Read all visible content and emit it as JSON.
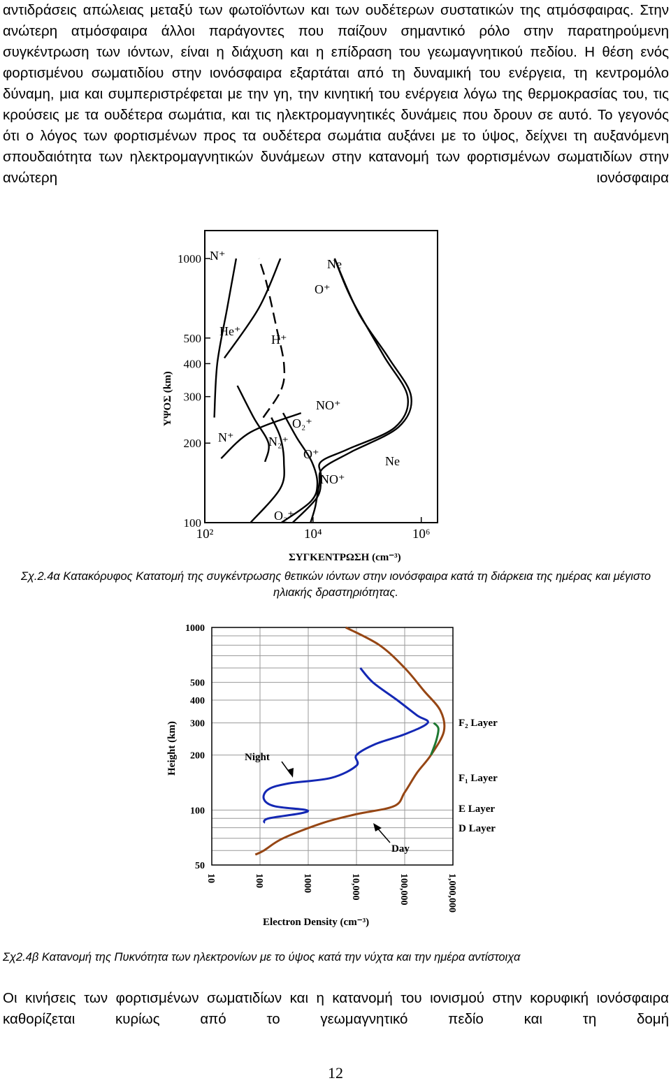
{
  "paragraphs": {
    "intro": "αντιδράσεις απώλειας μεταξύ των φωτοϊόντων και των ουδέτερων συστατικών της ατμόσφαιρας. Στην ανώτερη ατμόσφαιρα άλλοι παράγοντες που παίζουν σημαντικό ρόλο στην παρατηρούμενη συγκέντρωση των ιόντων, είναι η διάχυση και η επίδραση του γεωμαγνητικού πεδίου. Η θέση ενός φορτισμένου σωματιδίου στην ιονόσφαιρα εξαρτάται από τη δυναμική του ενέργεια, τη κεντρομόλο δύναμη, μια και συμπεριστρέφεται με την γη, την κινητική του ενέργεια λόγω της θερμοκρασίας του, τις κρούσεις με τα ουδέτερα σωμάτια, και τις ηλεκτρομαγνητικές δυνάμεις που δρουν σε αυτό. Το γεγονός ότι ο λόγος των φορτισμένων προς τα ουδέτερα σωμάτια αυξάνει με το ύψος, δείχνει τη αυξανόμενη σπουδαιότητα των ηλεκτρομαγνητικών δυνάμεων στην κατανομή των φορτισμένων σωματιδίων στην ανώτερη ιονόσφαιρα",
    "closing": "Οι κινήσεις των φορτισμένων σωματιδίων και η κατανομή του ιονισμού στην κορυφική ιονόσφαιρα καθορίζεται κυρίως από το γεωμαγνητικό πεδίο και τη δομή"
  },
  "captions": {
    "fig_a": "Σχ.2.4α Κατακόρυφος Κατατομή της συγκέντρωσης θετικών ιόντων στην ιονόσφαιρα κατά τη διάρκεια της ημέρας και μέγιστο ηλιακής δραστηριότητας.",
    "fig_b": "Σχ2.4β Κατανομή της Πυκνότητα των ηλεκτρονίων με το ύψος κατά την νύχτα και την ημέρα αντίστοιχα"
  },
  "page_number": "12",
  "chart_data": [
    {
      "type": "line",
      "ylabel": "ΥΨΟΣ (km)",
      "xlabel": "ΣΥΓΚΕΝΤΡΩΣΗ (cm⁻³)",
      "x_scale": "log",
      "y_scale": "log",
      "xlim": [
        100,
        2000000
      ],
      "ylim": [
        100,
        1000
      ],
      "x_tick_labels": [
        {
          "value": 100,
          "label": "10²"
        },
        {
          "value": 10000,
          "label": "10⁴"
        },
        {
          "value": 1000000,
          "label": "10⁶"
        }
      ],
      "y_tick_labels": [
        "100",
        "200",
        "300",
        "400",
        "500",
        "1000"
      ],
      "y_ticks": [
        100,
        200,
        300,
        400,
        500,
        1000
      ],
      "color": "#000000",
      "series": [
        {
          "name": "Ne",
          "dash": false,
          "points": [
            [
              9000,
              100
            ],
            [
              11000,
              115
            ],
            [
              13000,
              140
            ],
            [
              15000,
              160
            ],
            [
              50000,
              185
            ],
            [
              380000,
              230
            ],
            [
              650000,
              300
            ],
            [
              250000,
              420
            ],
            [
              70000,
              620
            ],
            [
              25000,
              1000
            ]
          ]
        },
        {
          "name": "O⁺",
          "dash": false,
          "points": [
            [
              4200,
              100
            ],
            [
              12000,
              125
            ],
            [
              14000,
              150
            ],
            [
              14000,
              170
            ],
            [
              45000,
              190
            ],
            [
              330000,
              230
            ],
            [
              560000,
              300
            ],
            [
              200000,
              430
            ],
            [
              52000,
              700
            ],
            [
              25000,
              1000
            ]
          ]
        },
        {
          "name": "NO⁺",
          "dash": false,
          "points": [
            [
              2600,
              100
            ],
            [
              9000,
              120
            ],
            [
              12000,
              140
            ],
            [
              9500,
              170
            ],
            [
              5000,
              210
            ],
            [
              2800,
              260
            ]
          ]
        },
        {
          "name": "O₂⁺",
          "dash": false,
          "points": [
            [
              700,
              100
            ],
            [
              2500,
              135
            ],
            [
              2900,
              170
            ],
            [
              2500,
              210
            ],
            [
              1700,
              250
            ]
          ]
        },
        {
          "name": "N₂⁺",
          "dash": false,
          "points": [
            [
              1300,
              170
            ],
            [
              1500,
              200
            ],
            [
              800,
              250
            ],
            [
              400,
              330
            ]
          ]
        },
        {
          "name": "N⁺",
          "dash": false,
          "points": [
            [
              200,
              175
            ],
            [
              700,
              220
            ],
            [
              6000,
              260
            ]
          ]
        },
        {
          "name": "N⁺",
          "dash": false,
          "points": [
            [
              230,
              420
            ],
            [
              1000,
              650
            ],
            [
              2500,
              1000
            ]
          ]
        },
        {
          "name": "H⁺",
          "dash": true,
          "points": [
            [
              1200,
              250
            ],
            [
              2600,
              320
            ],
            [
              2900,
              400
            ],
            [
              2100,
              550
            ],
            [
              1400,
              800
            ],
            [
              1000,
              1000
            ]
          ]
        },
        {
          "name": "He⁺",
          "dash": false,
          "points": [
            [
              150,
              250
            ],
            [
              170,
              400
            ],
            [
              260,
              650
            ],
            [
              380,
              1000
            ]
          ]
        }
      ],
      "series_labels": [
        "N⁺",
        "Ne",
        "O⁺",
        "He⁺",
        "H⁺",
        "NO⁺",
        "O₂⁺",
        "N⁺",
        "N₂⁺",
        "O⁺",
        "Ne",
        "NO⁺",
        "O₂⁺"
      ]
    },
    {
      "type": "line",
      "ylabel": "Height (km)",
      "xlabel": "Electron Density (cm⁻³)",
      "x_scale": "log",
      "y_scale": "log",
      "xlim": [
        10,
        1000000
      ],
      "ylim": [
        50,
        1000
      ],
      "x_tick_labels": [
        "10",
        "100",
        "1000",
        "10,000",
        "100,000",
        "1,000,000"
      ],
      "x_ticks": [
        10,
        100,
        1000,
        10000,
        100000,
        1000000
      ],
      "y_tick_labels": [
        "50",
        "100",
        "200",
        "300",
        "400",
        "500",
        "1000"
      ],
      "y_ticks": [
        50,
        100,
        200,
        300,
        400,
        500,
        1000
      ],
      "grid": true,
      "series": [
        {
          "name": "Night",
          "color": "#1428b4",
          "points": [
            [
              12000,
              600
            ],
            [
              22000,
              500
            ],
            [
              70000,
              400
            ],
            [
              180000,
              330
            ],
            [
              300000,
              300
            ],
            [
              100000,
              260
            ],
            [
              25000,
              230
            ],
            [
              10000,
              200
            ],
            [
              10000,
              175
            ],
            [
              3000,
              150
            ],
            [
              400,
              140
            ],
            [
              150,
              130
            ],
            [
              120,
              115
            ],
            [
              200,
              105
            ],
            [
              900,
              100
            ],
            [
              700,
              96
            ],
            [
              150,
              90
            ],
            [
              120,
              85
            ]
          ]
        },
        {
          "name": "Day",
          "color": "#964614",
          "points": [
            [
              6000,
              1000
            ],
            [
              30000,
              800
            ],
            [
              100000,
              600
            ],
            [
              250000,
              450
            ],
            [
              550000,
              350
            ],
            [
              650000,
              270
            ],
            [
              350000,
              200
            ],
            [
              180000,
              160
            ],
            [
              100000,
              125
            ],
            [
              60000,
              105
            ],
            [
              10000,
              95
            ],
            [
              2000,
              85
            ],
            [
              300,
              70
            ],
            [
              120,
              60
            ],
            [
              80,
              57
            ]
          ]
        },
        {
          "name": "F₁",
          "color": "#1e7832",
          "points": [
            [
              400000,
              300
            ],
            [
              500000,
              280
            ],
            [
              450000,
              240
            ],
            [
              350000,
              200
            ]
          ]
        }
      ],
      "annotations": [
        "Night",
        "Day"
      ],
      "layer_labels": [
        "F₂ Layer",
        "F₁ Layer",
        "E Layer",
        "D Layer"
      ]
    }
  ]
}
